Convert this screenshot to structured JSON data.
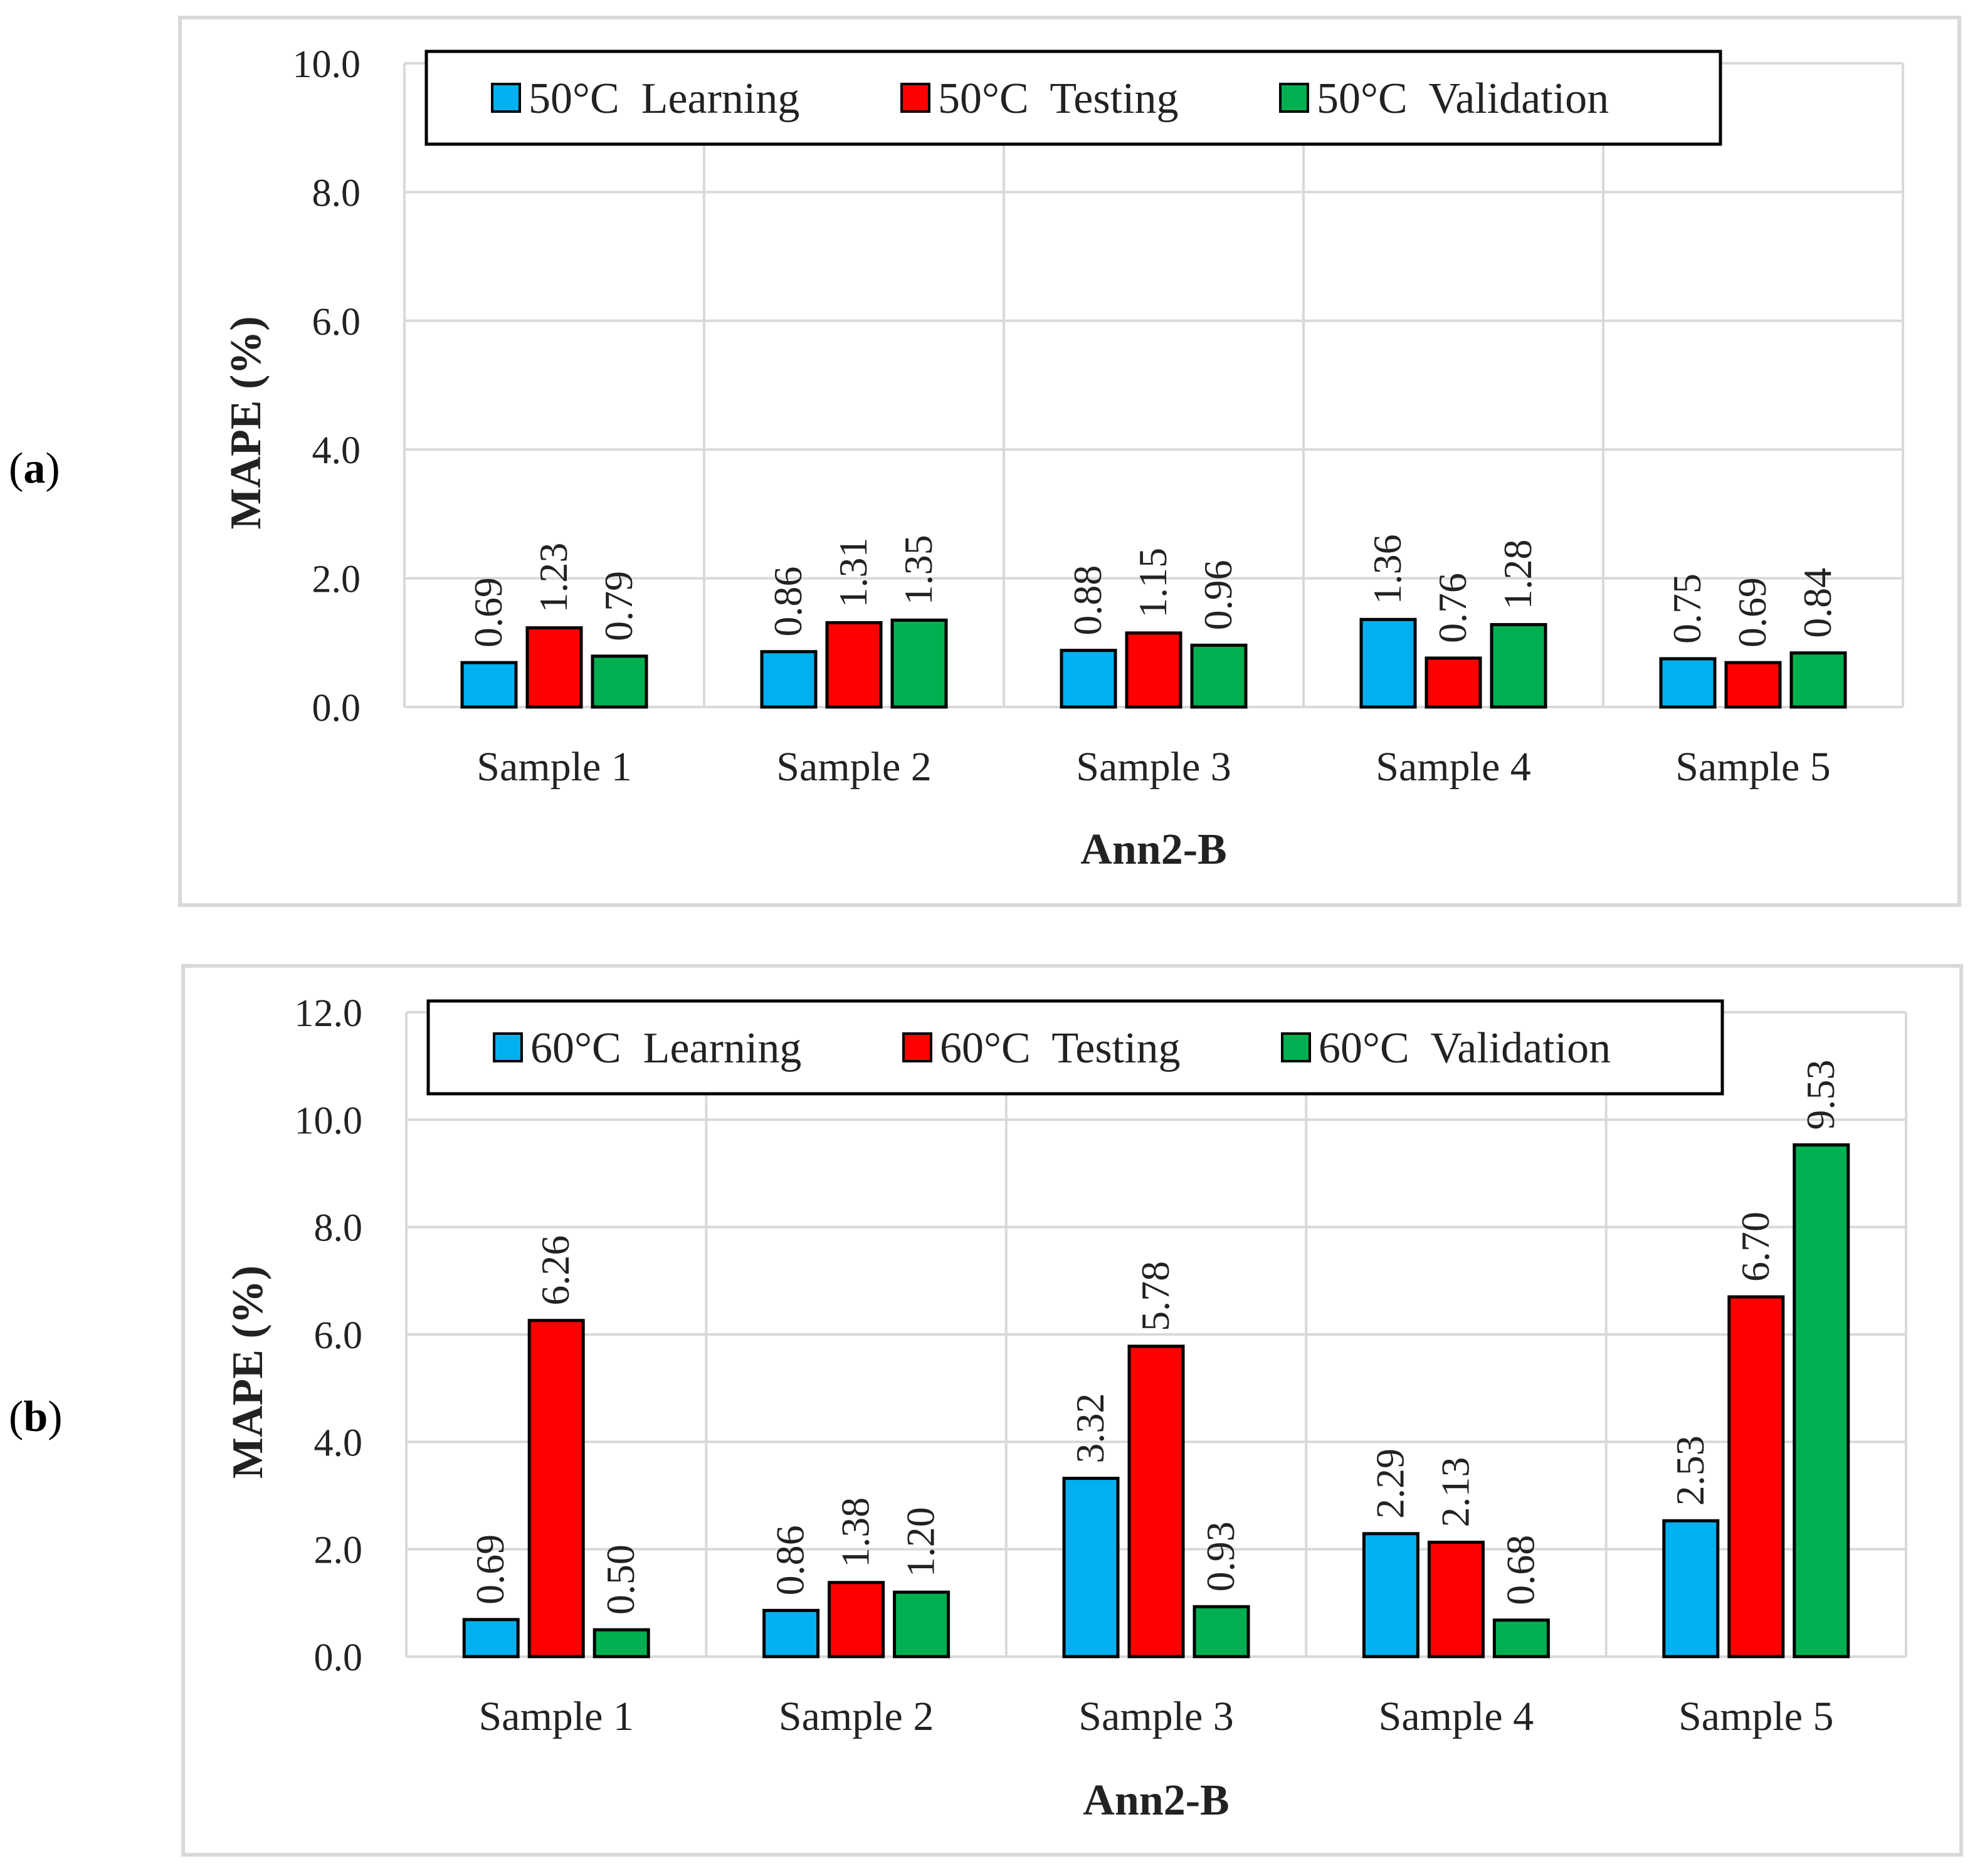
{
  "chart_data": [
    {
      "type": "bar",
      "panel_label": "a",
      "categories": [
        "Sample 1",
        "Sample 2",
        "Sample 3",
        "Sample 4",
        "Sample 5"
      ],
      "series": [
        {
          "name": "50°C  Learning",
          "color": "#00B0F0",
          "values": [
            0.69,
            0.86,
            0.88,
            1.36,
            0.75
          ]
        },
        {
          "name": "50°C  Testing",
          "color": "#FF0000",
          "values": [
            1.23,
            1.31,
            1.15,
            0.76,
            0.69
          ]
        },
        {
          "name": "50°C  Validation",
          "color": "#00B050",
          "values": [
            0.79,
            1.35,
            0.96,
            1.28,
            0.84
          ]
        }
      ],
      "xlabel": "Ann2-B",
      "ylabel": "MAPE (%)",
      "ylim": [
        0,
        10
      ],
      "yticks": [
        "0.0",
        "2.0",
        "4.0",
        "6.0",
        "8.0",
        "10.0"
      ],
      "data_labels": [
        [
          "0.69",
          "0.86",
          "0.88",
          "1.36",
          "0.75"
        ],
        [
          "1.23",
          "1.31",
          "1.15",
          "0.76",
          "0.69"
        ],
        [
          "0.79",
          "1.35",
          "0.96",
          "1.28",
          "0.84"
        ]
      ],
      "grid": true,
      "legend": "top"
    },
    {
      "type": "bar",
      "panel_label": "b",
      "categories": [
        "Sample 1",
        "Sample 2",
        "Sample 3",
        "Sample 4",
        "Sample 5"
      ],
      "series": [
        {
          "name": "60°C  Learning",
          "color": "#00B0F0",
          "values": [
            0.69,
            0.86,
            3.32,
            2.29,
            2.53
          ]
        },
        {
          "name": "60°C  Testing",
          "color": "#FF0000",
          "values": [
            6.26,
            1.38,
            5.78,
            2.13,
            6.7
          ]
        },
        {
          "name": "60°C  Validation",
          "color": "#00B050",
          "values": [
            0.5,
            1.2,
            0.93,
            0.68,
            9.53
          ]
        }
      ],
      "xlabel": "Ann2-B",
      "ylabel": "MAPE (%)",
      "ylim": [
        0,
        12
      ],
      "yticks": [
        "0.0",
        "2.0",
        "4.0",
        "6.0",
        "8.0",
        "10.0",
        "12.0"
      ],
      "data_labels": [
        [
          "0.69",
          "0.86",
          "3.32",
          "2.29",
          "2.53"
        ],
        [
          "6.26",
          "1.38",
          "5.78",
          "2.13",
          "6.70"
        ],
        [
          "0.50",
          "1.20",
          "0.93",
          "0.68",
          "9.53"
        ]
      ],
      "grid": true,
      "legend": "top"
    }
  ]
}
